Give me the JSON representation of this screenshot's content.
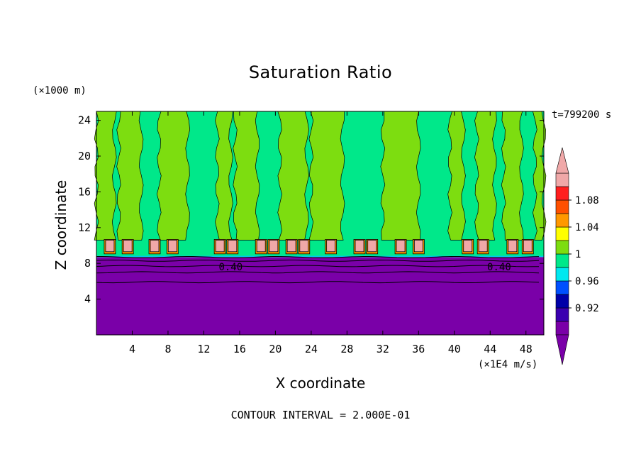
{
  "chart_data": {
    "type": "heatmap",
    "title": "Saturation Ratio",
    "xlabel": "X coordinate",
    "ylabel": "Z coordinate",
    "x_unit": "(×1E4 m/s)",
    "y_unit": "(×1000 m)",
    "time_label": "t=799200 s",
    "contour_interval_label": "CONTOUR INTERVAL = 2.000E-01",
    "xlim": [
      0,
      50
    ],
    "ylim": [
      0,
      25
    ],
    "x_ticks": [
      4,
      8,
      12,
      16,
      20,
      24,
      28,
      32,
      36,
      40,
      44,
      48
    ],
    "x_tick_labels": [
      "4",
      "8",
      "12",
      "16",
      "20",
      "24",
      "28",
      "32",
      "36",
      "40",
      "44",
      "48"
    ],
    "y_ticks": [
      4,
      8,
      12,
      16,
      20,
      24
    ],
    "y_tick_labels": [
      "4",
      "8",
      "12",
      "16",
      "20",
      "24"
    ],
    "contour_labels": [
      {
        "text": "0.40",
        "x": 15.0,
        "y": 7.6
      },
      {
        "text": "0.40",
        "x": 45.0,
        "y": 7.6
      }
    ],
    "legend": {
      "placement": "right",
      "levels": [
        {
          "label": "",
          "color": "#7a00a8"
        },
        {
          "label": "0.92",
          "color": "#3b00b0"
        },
        {
          "label": "",
          "color": "#0000a8"
        },
        {
          "label": "0.96",
          "color": "#0050ff"
        },
        {
          "label": "",
          "color": "#00e8f0"
        },
        {
          "label": "1",
          "color": "#00e88a"
        },
        {
          "label": "",
          "color": "#7ddd10"
        },
        {
          "label": "1.04",
          "color": "#ffff00"
        },
        {
          "label": "",
          "color": "#ff9800"
        },
        {
          "label": "1.08",
          "color": "#ff5000"
        },
        {
          "label": "",
          "color": "#ff1e1e"
        },
        {
          "label": "",
          "color": "#f0a8a8"
        }
      ]
    },
    "field": {
      "dry_layer_top": 8.7,
      "moist_layer_top": 24.8,
      "dry_color": "#7a00a8",
      "moist_colors": [
        "#00e88a",
        "#7ddd10"
      ],
      "supersat_cells_x": [
        1.5,
        3.5,
        6.5,
        8.5,
        13.8,
        15.2,
        18.4,
        19.8,
        21.8,
        23.2,
        26.2,
        29.4,
        30.8,
        34.0,
        36.0,
        41.5,
        43.2,
        46.5,
        48.2
      ],
      "supersat_cell_bottom": 9.3,
      "supersat_cell_top": 10.6,
      "wet_columns": [
        {
          "x0": 0.0,
          "x1": 2.0
        },
        {
          "x0": 2.5,
          "x1": 5.0
        },
        {
          "x0": 7.0,
          "x1": 10.2
        },
        {
          "x0": 13.5,
          "x1": 15.0
        },
        {
          "x0": 15.5,
          "x1": 18.0
        },
        {
          "x0": 20.5,
          "x1": 23.5
        },
        {
          "x0": 24.0,
          "x1": 27.5
        },
        {
          "x0": 32.0,
          "x1": 36.0
        },
        {
          "x0": 39.5,
          "x1": 41.0
        },
        {
          "x0": 42.5,
          "x1": 44.5
        },
        {
          "x0": 45.5,
          "x1": 47.5
        },
        {
          "x0": 49.0,
          "x1": 50.0
        }
      ],
      "dry_contours_y": [
        5.9,
        7.0,
        7.7,
        8.3,
        8.7
      ]
    }
  }
}
